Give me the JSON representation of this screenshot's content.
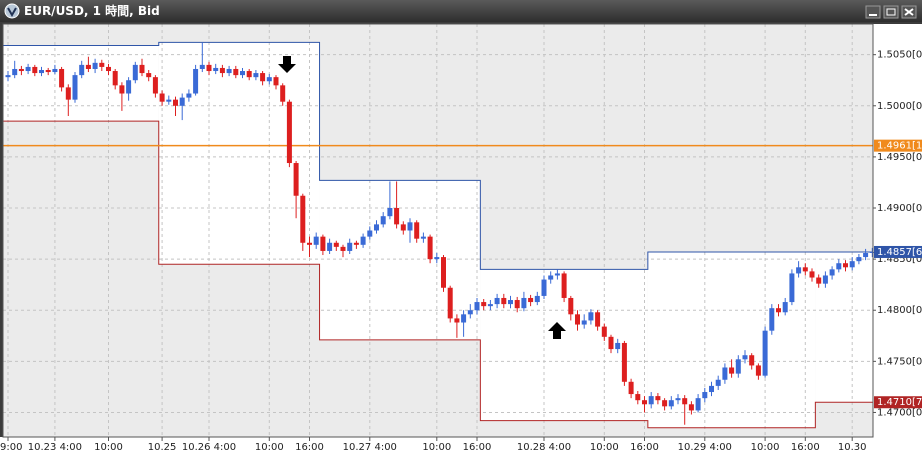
{
  "window_title": "EUR/USD, 1 時間, Bid",
  "chart_data": {
    "type": "candlestick",
    "categories": [
      "9:00",
      null,
      null,
      null,
      null,
      null,
      null,
      "10.23 4:00",
      null,
      null,
      null,
      null,
      null,
      null,
      null,
      "10:00",
      null,
      null,
      null,
      null,
      null,
      null,
      null,
      "10.25",
      null,
      null,
      null,
      null,
      null,
      null,
      "10.26 4:00",
      null,
      null,
      null,
      null,
      null,
      null,
      null,
      null,
      "10:00",
      null,
      null,
      null,
      null,
      null,
      "16:00",
      null,
      null,
      null,
      null,
      null,
      null,
      null,
      null,
      "10.27 4:00",
      null,
      null,
      null,
      null,
      null,
      null,
      null,
      null,
      null,
      "10:00",
      null,
      null,
      null,
      null,
      null,
      "16:00",
      null,
      null,
      null,
      null,
      null,
      null,
      null,
      null,
      null,
      "10.28 4:00",
      null,
      null,
      null,
      null,
      null,
      null,
      null,
      null,
      "10:00",
      null,
      null,
      null,
      null,
      null,
      "16:00",
      null,
      null,
      null,
      null,
      null,
      null,
      null,
      null,
      "10.29 4:00",
      null,
      null,
      null,
      null,
      null,
      null,
      null,
      null,
      "10:00",
      null,
      null,
      null,
      null,
      null,
      "16:00",
      null,
      null,
      null,
      null,
      null,
      null,
      "10.30",
      null,
      null,
      null
    ],
    "candles": [
      [
        1.5028,
        1.5034,
        1.5024,
        1.503
      ],
      [
        1.503,
        1.5044,
        1.5027,
        1.5036
      ],
      [
        1.5036,
        1.5039,
        1.503,
        1.5034
      ],
      [
        1.5034,
        1.5041,
        1.5031,
        1.5038
      ],
      [
        1.5038,
        1.504,
        1.5029,
        1.5032
      ],
      [
        1.5032,
        1.5038,
        1.5029,
        1.5035
      ],
      [
        1.5035,
        1.5037,
        1.503,
        1.5033
      ],
      [
        1.5033,
        1.504,
        1.5031,
        1.5036
      ],
      [
        1.5036,
        1.5038,
        1.5014,
        1.5018
      ],
      [
        1.5018,
        1.5021,
        1.499,
        1.5006
      ],
      [
        1.5006,
        1.5033,
        1.5003,
        1.503
      ],
      [
        1.503,
        1.5044,
        1.5027,
        1.504
      ],
      [
        1.504,
        1.5048,
        1.5033,
        1.5036
      ],
      [
        1.5036,
        1.5046,
        1.5032,
        1.5042
      ],
      [
        1.5042,
        1.5045,
        1.5034,
        1.5038
      ],
      [
        1.5038,
        1.5041,
        1.503,
        1.5034
      ],
      [
        1.5034,
        1.5036,
        1.5016,
        1.502
      ],
      [
        1.502,
        1.5023,
        1.4995,
        1.5012
      ],
      [
        1.5012,
        1.5028,
        1.5005,
        1.5025
      ],
      [
        1.5025,
        1.5043,
        1.5022,
        1.504
      ],
      [
        1.504,
        1.5046,
        1.5029,
        1.5032
      ],
      [
        1.5032,
        1.5035,
        1.5024,
        1.5028
      ],
      [
        1.5028,
        1.503,
        1.5008,
        1.5012
      ],
      [
        1.5012,
        1.5015,
        1.5,
        1.5004
      ],
      [
        1.5004,
        1.501,
        1.5001,
        1.5006
      ],
      [
        1.5006,
        1.5009,
        1.499,
        1.5
      ],
      [
        1.5,
        1.5012,
        1.4986,
        1.5008
      ],
      [
        1.5008,
        1.5016,
        1.5004,
        1.5012
      ],
      [
        1.5012,
        1.504,
        1.501,
        1.5036
      ],
      [
        1.5036,
        1.5062,
        1.5033,
        1.504
      ],
      [
        1.504,
        1.5043,
        1.503,
        1.5034
      ],
      [
        1.5034,
        1.5041,
        1.5031,
        1.5037
      ],
      [
        1.5037,
        1.504,
        1.5028,
        1.5032
      ],
      [
        1.5032,
        1.5039,
        1.5029,
        1.5036
      ],
      [
        1.5036,
        1.5039,
        1.5027,
        1.503
      ],
      [
        1.503,
        1.5037,
        1.5027,
        1.5034
      ],
      [
        1.5034,
        1.5036,
        1.5025,
        1.5028
      ],
      [
        1.5028,
        1.5035,
        1.5025,
        1.5032
      ],
      [
        1.5032,
        1.5034,
        1.502,
        1.5024
      ],
      [
        1.5024,
        1.5031,
        1.5021,
        1.5028
      ],
      [
        1.5028,
        1.503,
        1.5016,
        1.502
      ],
      [
        1.502,
        1.5022,
        1.5,
        1.5004
      ],
      [
        1.5004,
        1.5006,
        1.494,
        1.4944
      ],
      [
        1.4944,
        1.4946,
        1.489,
        1.4912
      ],
      [
        1.4912,
        1.4914,
        1.4858,
        1.4866
      ],
      [
        1.4866,
        1.4872,
        1.4852,
        1.4864
      ],
      [
        1.4864,
        1.4876,
        1.486,
        1.4872
      ],
      [
        1.4872,
        1.4874,
        1.4854,
        1.4858
      ],
      [
        1.4858,
        1.487,
        1.4855,
        1.4866
      ],
      [
        1.4866,
        1.4868,
        1.4858,
        1.4862
      ],
      [
        1.4862,
        1.4864,
        1.4852,
        1.4858
      ],
      [
        1.4858,
        1.487,
        1.4855,
        1.4866
      ],
      [
        1.4866,
        1.4868,
        1.486,
        1.4864
      ],
      [
        1.4864,
        1.4875,
        1.4861,
        1.4872
      ],
      [
        1.4872,
        1.4882,
        1.4869,
        1.4878
      ],
      [
        1.4878,
        1.4888,
        1.4875,
        1.4884
      ],
      [
        1.4884,
        1.4896,
        1.4881,
        1.4892
      ],
      [
        1.4892,
        1.4926,
        1.4889,
        1.49
      ],
      [
        1.49,
        1.4926,
        1.488,
        1.4884
      ],
      [
        1.4884,
        1.4887,
        1.4874,
        1.4878
      ],
      [
        1.4878,
        1.489,
        1.4866,
        1.4886
      ],
      [
        1.4886,
        1.4888,
        1.4866,
        1.487
      ],
      [
        1.487,
        1.4876,
        1.4866,
        1.4872
      ],
      [
        1.4872,
        1.4874,
        1.4846,
        1.485
      ],
      [
        1.485,
        1.4856,
        1.4846,
        1.4852
      ],
      [
        1.4852,
        1.4854,
        1.4818,
        1.4822
      ],
      [
        1.4822,
        1.4824,
        1.4788,
        1.4792
      ],
      [
        1.4792,
        1.4796,
        1.4773,
        1.4788
      ],
      [
        1.4788,
        1.48,
        1.4774,
        1.4796
      ],
      [
        1.4796,
        1.4806,
        1.4792,
        1.48
      ],
      [
        1.48,
        1.4812,
        1.4796,
        1.4808
      ],
      [
        1.4808,
        1.4811,
        1.48,
        1.4804
      ],
      [
        1.4804,
        1.481,
        1.48,
        1.4806
      ],
      [
        1.4806,
        1.4816,
        1.4802,
        1.4812
      ],
      [
        1.4812,
        1.4816,
        1.4802,
        1.4806
      ],
      [
        1.4806,
        1.4814,
        1.4802,
        1.481
      ],
      [
        1.481,
        1.4813,
        1.4798,
        1.4802
      ],
      [
        1.4802,
        1.4818,
        1.4799,
        1.4812
      ],
      [
        1.4812,
        1.4815,
        1.4804,
        1.4808
      ],
      [
        1.4808,
        1.4818,
        1.4805,
        1.4814
      ],
      [
        1.4814,
        1.4834,
        1.4811,
        1.483
      ],
      [
        1.483,
        1.4838,
        1.4826,
        1.4834
      ],
      [
        1.4834,
        1.484,
        1.483,
        1.4836
      ],
      [
        1.4836,
        1.4838,
        1.4808,
        1.4812
      ],
      [
        1.4812,
        1.4814,
        1.479,
        1.4796
      ],
      [
        1.4796,
        1.48,
        1.478,
        1.4786
      ],
      [
        1.4786,
        1.4796,
        1.4782,
        1.479
      ],
      [
        1.479,
        1.4801,
        1.4786,
        1.4798
      ],
      [
        1.4798,
        1.48,
        1.478,
        1.4784
      ],
      [
        1.4784,
        1.4787,
        1.477,
        1.4774
      ],
      [
        1.4774,
        1.4776,
        1.4758,
        1.4762
      ],
      [
        1.4762,
        1.4772,
        1.4758,
        1.4768
      ],
      [
        1.4768,
        1.477,
        1.4726,
        1.473
      ],
      [
        1.473,
        1.4733,
        1.4714,
        1.4718
      ],
      [
        1.4718,
        1.4721,
        1.4708,
        1.4712
      ],
      [
        1.4712,
        1.4716,
        1.47,
        1.4708
      ],
      [
        1.4708,
        1.472,
        1.4704,
        1.4716
      ],
      [
        1.4716,
        1.4719,
        1.4708,
        1.4712
      ],
      [
        1.4712,
        1.4714,
        1.4702,
        1.4706
      ],
      [
        1.4706,
        1.4716,
        1.4703,
        1.4712
      ],
      [
        1.4712,
        1.4718,
        1.4708,
        1.4714
      ],
      [
        1.4714,
        1.4717,
        1.4688,
        1.4708
      ],
      [
        1.4708,
        1.4711,
        1.4698,
        1.4702
      ],
      [
        1.4702,
        1.4718,
        1.47,
        1.4714
      ],
      [
        1.4714,
        1.4724,
        1.471,
        1.472
      ],
      [
        1.472,
        1.473,
        1.4716,
        1.4726
      ],
      [
        1.4726,
        1.4736,
        1.4722,
        1.4732
      ],
      [
        1.4732,
        1.4748,
        1.4728,
        1.4744
      ],
      [
        1.4744,
        1.4752,
        1.4734,
        1.4738
      ],
      [
        1.4738,
        1.4756,
        1.4734,
        1.4752
      ],
      [
        1.4752,
        1.4761,
        1.4748,
        1.4756
      ],
      [
        1.4756,
        1.4758,
        1.4742,
        1.4746
      ],
      [
        1.4746,
        1.4748,
        1.4732,
        1.4736
      ],
      [
        1.4736,
        1.4784,
        1.4734,
        1.478
      ],
      [
        1.478,
        1.4806,
        1.4776,
        1.4802
      ],
      [
        1.4802,
        1.4806,
        1.4794,
        1.4798
      ],
      [
        1.4798,
        1.4812,
        1.4795,
        1.4808
      ],
      [
        1.4808,
        1.484,
        1.4805,
        1.4836
      ],
      [
        1.4836,
        1.4848,
        1.4832,
        1.4842
      ],
      [
        1.4842,
        1.4846,
        1.4834,
        1.4838
      ],
      [
        1.4838,
        1.4841,
        1.4828,
        1.4832
      ],
      [
        1.4832,
        1.4835,
        1.4822,
        1.4826
      ],
      [
        1.4826,
        1.4838,
        1.4822,
        1.4834
      ],
      [
        1.4834,
        1.4843,
        1.483,
        1.484
      ],
      [
        1.484,
        1.485,
        1.4837,
        1.4846
      ],
      [
        1.4846,
        1.4849,
        1.4838,
        1.4842
      ],
      [
        1.4842,
        1.4852,
        1.4839,
        1.4848
      ],
      [
        1.4848,
        1.4855,
        1.4845,
        1.4852
      ],
      [
        1.4852,
        1.486,
        1.4849,
        1.4856
      ],
      [
        1.4856,
        1.4861,
        1.4852,
        1.4857
      ]
    ],
    "up_color": "#3a6ad6",
    "down_color": "#dd1f1f",
    "ylim": [
      1.4676,
      1.508
    ],
    "yticks": [
      {
        "value": 1.47,
        "label": "1.4700[0]"
      },
      {
        "value": 1.475,
        "label": "1.4750[0]"
      },
      {
        "value": 1.48,
        "label": "1.4800[0]"
      },
      {
        "value": 1.485,
        "label": "1.4850[0]"
      },
      {
        "value": 1.49,
        "label": "1.4900[0]"
      },
      {
        "value": 1.495,
        "label": "1.4950[0]"
      },
      {
        "value": 1.5,
        "label": "1.5000[0]"
      },
      {
        "value": 1.505,
        "label": "1.5050[0]"
      }
    ],
    "grid": true,
    "hlines": [
      {
        "value": 1.4961,
        "label": "1.4961[1]",
        "color": "#f08a1c"
      }
    ],
    "channels": [
      {
        "color": "#2f55a8",
        "label": "1.4857[6]",
        "steps": [
          {
            "start": 0,
            "value": 1.5059
          },
          {
            "start": 23,
            "value": 1.5062
          },
          {
            "start": 47,
            "value": 1.4927
          },
          {
            "start": 71,
            "value": 1.484
          },
          {
            "start": 96,
            "value": 1.4857
          }
        ]
      },
      {
        "color": "#b02424",
        "label": "1.4710[7]",
        "steps": [
          {
            "start": 0,
            "value": 1.4985
          },
          {
            "start": 23,
            "value": 1.4845
          },
          {
            "start": 47,
            "value": 1.4771
          },
          {
            "start": 71,
            "value": 1.4692
          },
          {
            "start": 96,
            "value": 1.4685
          },
          {
            "start": 121,
            "value": 1.471
          }
        ]
      }
    ]
  }
}
